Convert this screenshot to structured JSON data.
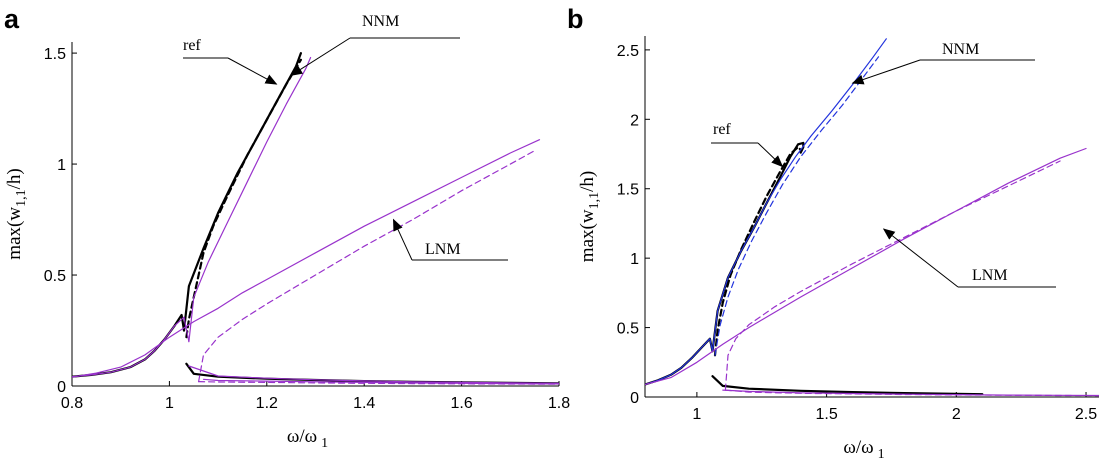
{
  "chart_data": [
    {
      "type": "line",
      "panel_label": "a",
      "xlabel": "ω/ω",
      "xlabel_sub": "1",
      "ylabel": "max(w",
      "ylabel_sub": "1,1",
      "ylabel_end": "/h)",
      "xlim": [
        0.8,
        1.8
      ],
      "ylim": [
        0,
        1.55
      ],
      "xticks": [
        0.8,
        1,
        1.2,
        1.4,
        1.6,
        1.8
      ],
      "xtick_labels": [
        "0.8",
        "1",
        "1.2",
        "1.4",
        "1.6",
        "1.8"
      ],
      "yticks": [
        0,
        0.5,
        1,
        1.5
      ],
      "ytick_labels": [
        "0",
        "0.5",
        "1",
        "1.5"
      ],
      "grid": false,
      "annotations": [
        {
          "text": "ref",
          "target": [
            1.22,
            1.36
          ]
        },
        {
          "text": "NNM",
          "target": [
            1.25,
            1.4
          ]
        },
        {
          "text": "LNM",
          "target": [
            1.46,
            0.75
          ]
        }
      ],
      "series": [
        {
          "color": "#000000",
          "dash": false,
          "x": [
            1.03,
            1.025,
            1.01,
            0.99,
            0.97,
            0.95,
            0.92,
            0.88,
            0.84,
            0.8
          ],
          "y": [
            0.25,
            0.32,
            0.27,
            0.21,
            0.16,
            0.12,
            0.085,
            0.062,
            0.05,
            0.042
          ]
        },
        {
          "color": "#000000",
          "dash": false,
          "x": [
            1.03,
            1.04,
            1.07,
            1.1,
            1.14,
            1.18,
            1.22,
            1.26,
            1.27
          ],
          "y": [
            0.25,
            0.45,
            0.62,
            0.78,
            0.96,
            1.12,
            1.28,
            1.44,
            1.5
          ]
        },
        {
          "color": "#000000",
          "dash": true,
          "x": [
            1.035,
            1.04,
            1.055,
            1.07,
            1.09,
            1.12,
            1.16,
            1.2,
            1.24,
            1.27
          ],
          "y": [
            0.22,
            0.3,
            0.45,
            0.6,
            0.72,
            0.86,
            1.04,
            1.2,
            1.36,
            1.47
          ]
        },
        {
          "color": "#000000",
          "dash": false,
          "x": [
            1.035,
            1.05,
            1.1,
            1.2,
            1.3,
            1.4,
            1.5,
            1.6,
            1.7,
            1.8
          ],
          "y": [
            0.1,
            0.055,
            0.042,
            0.033,
            0.027,
            0.022,
            0.019,
            0.016,
            0.014,
            0.012
          ]
        },
        {
          "color": "#9933cc",
          "dash": false,
          "x": [
            1.04,
            1.03,
            1.01,
            0.99,
            0.97,
            0.95,
            0.92,
            0.88,
            0.84,
            0.8
          ],
          "y": [
            0.2,
            0.31,
            0.27,
            0.21,
            0.16,
            0.12,
            0.085,
            0.062,
            0.05,
            0.042
          ]
        },
        {
          "color": "#9933cc",
          "dash": false,
          "x": [
            1.04,
            1.05,
            1.08,
            1.12,
            1.16,
            1.2,
            1.24,
            1.28,
            1.29
          ],
          "y": [
            0.2,
            0.4,
            0.56,
            0.74,
            0.92,
            1.1,
            1.27,
            1.43,
            1.48
          ]
        },
        {
          "color": "#9933cc",
          "dash": false,
          "x": [
            1.04,
            1.1,
            1.2,
            1.3,
            1.4,
            1.5,
            1.6,
            1.7,
            1.8
          ],
          "y": [
            0.09,
            0.045,
            0.035,
            0.028,
            0.023,
            0.019,
            0.016,
            0.014,
            0.012
          ]
        },
        {
          "color": "#9933cc",
          "dash": false,
          "x": [
            0.8,
            0.85,
            0.9,
            0.95,
            1.0,
            1.05,
            1.1,
            1.15,
            1.2,
            1.3,
            1.4,
            1.5,
            1.6,
            1.7,
            1.76
          ],
          "y": [
            0.04,
            0.058,
            0.085,
            0.14,
            0.22,
            0.29,
            0.35,
            0.42,
            0.48,
            0.6,
            0.72,
            0.83,
            0.94,
            1.05,
            1.11
          ]
        },
        {
          "color": "#9933cc",
          "dash": false,
          "x": [
            1.07,
            1.1,
            1.2,
            1.3,
            1.4,
            1.5,
            1.6,
            1.7,
            1.8
          ],
          "y": [
            0.03,
            0.025,
            0.022,
            0.019,
            0.016,
            0.014,
            0.012,
            0.011,
            0.01
          ]
        },
        {
          "color": "#9933cc",
          "dash": true,
          "x": [
            1.06,
            1.07,
            1.1,
            1.15,
            1.2,
            1.3,
            1.4,
            1.5,
            1.6,
            1.7,
            1.75
          ],
          "y": [
            0.02,
            0.14,
            0.22,
            0.3,
            0.37,
            0.5,
            0.63,
            0.75,
            0.88,
            1.0,
            1.06
          ]
        },
        {
          "color": "#9933cc",
          "dash": true,
          "x": [
            1.06,
            1.1,
            1.2,
            1.3,
            1.4,
            1.5,
            1.6,
            1.7,
            1.8
          ],
          "y": [
            0.02,
            0.018,
            0.016,
            0.014,
            0.012,
            0.011,
            0.01,
            0.009,
            0.008
          ]
        }
      ]
    },
    {
      "type": "line",
      "panel_label": "b",
      "xlabel": "ω/ω",
      "xlabel_sub": "1",
      "ylabel": "max(w",
      "ylabel_sub": "1,1",
      "ylabel_end": "/h)",
      "xlim": [
        0.8,
        2.55
      ],
      "ylim": [
        0,
        2.6
      ],
      "xticks": [
        1,
        1.5,
        2,
        2.5
      ],
      "xtick_labels": [
        "1",
        "1.5",
        "2",
        "2.5"
      ],
      "yticks": [
        0,
        0.5,
        1,
        1.5,
        2,
        2.5
      ],
      "ytick_labels": [
        "0",
        "0.5",
        "1",
        "1.5",
        "2",
        "2.5"
      ],
      "grid": false,
      "annotations": [
        {
          "text": "ref",
          "target": [
            1.33,
            1.66
          ]
        },
        {
          "text": "NNM",
          "target": [
            1.6,
            2.26
          ]
        },
        {
          "text": "LNM",
          "target": [
            1.72,
            1.21
          ]
        }
      ],
      "series": [
        {
          "color": "#000000",
          "dash": false,
          "x": [
            1.06,
            1.05,
            1.02,
            0.98,
            0.94,
            0.9,
            0.85,
            0.8
          ],
          "y": [
            0.33,
            0.42,
            0.36,
            0.28,
            0.21,
            0.16,
            0.12,
            0.09
          ]
        },
        {
          "color": "#000000",
          "dash": false,
          "x": [
            1.06,
            1.08,
            1.12,
            1.17,
            1.22,
            1.27,
            1.32,
            1.36,
            1.39,
            1.41,
            1.41,
            1.4
          ],
          "y": [
            0.33,
            0.62,
            0.86,
            1.05,
            1.22,
            1.4,
            1.58,
            1.73,
            1.82,
            1.83,
            1.8,
            1.76
          ]
        },
        {
          "color": "#000000",
          "dash": true,
          "x": [
            1.07,
            1.08,
            1.1,
            1.13,
            1.17,
            1.22,
            1.27,
            1.32,
            1.36,
            1.39,
            1.4
          ],
          "y": [
            0.3,
            0.48,
            0.68,
            0.88,
            1.06,
            1.26,
            1.45,
            1.62,
            1.75,
            1.8,
            1.78
          ]
        },
        {
          "color": "#000000",
          "dash": false,
          "x": [
            1.06,
            1.1,
            1.2,
            1.4,
            1.6,
            1.8,
            2.0,
            2.1
          ],
          "y": [
            0.15,
            0.08,
            0.06,
            0.045,
            0.035,
            0.028,
            0.023,
            0.02
          ]
        },
        {
          "color": "#2233dd",
          "dash": false,
          "x": [
            1.06,
            1.05,
            1.02,
            0.98,
            0.94,
            0.9,
            0.85,
            0.8
          ],
          "y": [
            0.33,
            0.42,
            0.36,
            0.28,
            0.21,
            0.16,
            0.12,
            0.09
          ]
        },
        {
          "color": "#2233dd",
          "dash": false,
          "x": [
            1.06,
            1.08,
            1.12,
            1.17,
            1.22,
            1.27,
            1.32,
            1.38,
            1.44,
            1.52,
            1.6,
            1.68,
            1.73
          ],
          "y": [
            0.33,
            0.62,
            0.86,
            1.05,
            1.22,
            1.4,
            1.56,
            1.73,
            1.88,
            2.06,
            2.25,
            2.45,
            2.58
          ]
        },
        {
          "color": "#2233dd",
          "dash": true,
          "x": [
            1.07,
            1.09,
            1.12,
            1.16,
            1.21,
            1.27,
            1.33,
            1.4,
            1.48,
            1.56,
            1.64,
            1.7
          ],
          "y": [
            0.3,
            0.52,
            0.72,
            0.92,
            1.12,
            1.33,
            1.53,
            1.73,
            1.92,
            2.1,
            2.3,
            2.45
          ]
        },
        {
          "color": "#9933cc",
          "dash": false,
          "x": [
            0.8,
            0.9,
            1.0,
            1.1,
            1.2,
            1.4,
            1.6,
            1.8,
            2.0,
            2.2,
            2.4,
            2.5
          ],
          "y": [
            0.09,
            0.14,
            0.25,
            0.38,
            0.5,
            0.72,
            0.93,
            1.14,
            1.34,
            1.54,
            1.72,
            1.79
          ]
        },
        {
          "color": "#9933cc",
          "dash": false,
          "x": [
            1.1,
            1.2,
            1.4,
            1.6,
            1.8,
            2.0,
            2.2,
            2.4,
            2.55
          ],
          "y": [
            0.05,
            0.04,
            0.03,
            0.025,
            0.02,
            0.017,
            0.014,
            0.012,
            0.011
          ]
        },
        {
          "color": "#9933cc",
          "dash": true,
          "x": [
            1.11,
            1.12,
            1.15,
            1.2,
            1.3,
            1.4,
            1.6,
            1.8,
            2.0,
            2.2,
            2.4
          ],
          "y": [
            0.05,
            0.3,
            0.42,
            0.52,
            0.65,
            0.76,
            0.96,
            1.15,
            1.34,
            1.52,
            1.7
          ]
        },
        {
          "color": "#9933cc",
          "dash": true,
          "x": [
            1.11,
            1.2,
            1.4,
            1.6,
            1.8,
            2.0,
            2.2,
            2.4,
            2.55
          ],
          "y": [
            0.05,
            0.035,
            0.027,
            0.022,
            0.018,
            0.015,
            0.013,
            0.011,
            0.01
          ]
        }
      ]
    }
  ]
}
